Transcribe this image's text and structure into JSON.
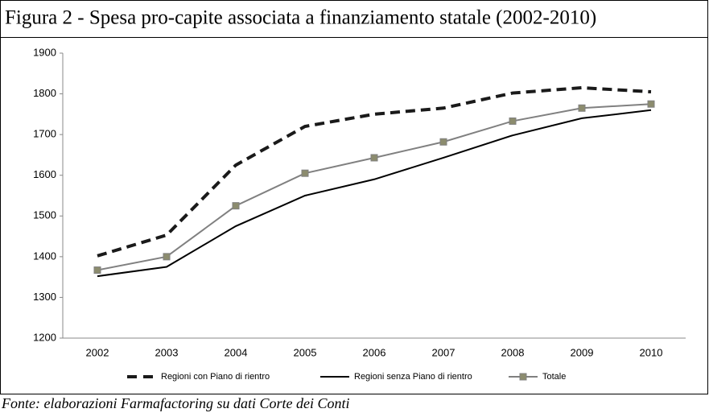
{
  "chart_data": {
    "type": "line",
    "title": "Figura 2 - Spesa pro-capite associata a finanziamento statale (2002-2010)",
    "source": "Fonte: elaborazioni Farmafactoring su dati Corte dei Conti",
    "categories": [
      "2002",
      "2003",
      "2004",
      "2005",
      "2006",
      "2007",
      "2008",
      "2009",
      "2010"
    ],
    "series": [
      {
        "name": "Regioni con Piano di rientro",
        "color": "#1a1a1a",
        "line_style": "dashed",
        "marker": "none",
        "values": [
          1402,
          1453,
          1625,
          1720,
          1750,
          1765,
          1802,
          1815,
          1805
        ]
      },
      {
        "name": "Regioni senza Piano di rientro",
        "color": "#000000",
        "line_style": "solid",
        "marker": "none",
        "values": [
          1352,
          1375,
          1475,
          1550,
          1590,
          1643,
          1698,
          1740,
          1760
        ]
      },
      {
        "name": "Totale",
        "color": "#808080",
        "line_style": "solid",
        "marker": "square",
        "marker_color": "#8c8c6e",
        "values": [
          1367,
          1400,
          1525,
          1605,
          1643,
          1682,
          1733,
          1765,
          1775
        ]
      }
    ],
    "ylim": [
      1200,
      1900
    ],
    "yticks": [
      1200,
      1300,
      1400,
      1500,
      1600,
      1700,
      1800,
      1900
    ],
    "grid": false,
    "legend": "bottom"
  }
}
